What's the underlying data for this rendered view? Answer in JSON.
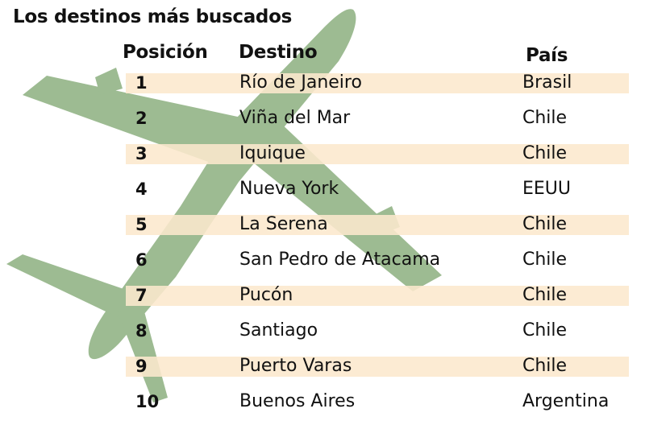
{
  "title": "Los destinos más buscados",
  "headers": {
    "position": "Posición",
    "destination": "Destino",
    "country": "País"
  },
  "colors": {
    "band": "#fce8cd",
    "plane": "#9dbb92",
    "text": "#111111"
  },
  "icons": {
    "background": "airplane-icon"
  },
  "rows": [
    {
      "position": "1",
      "destination": "Río de Janeiro",
      "country": "Brasil"
    },
    {
      "position": "2",
      "destination": "Viña del Mar",
      "country": "Chile"
    },
    {
      "position": "3",
      "destination": "Iquique",
      "country": "Chile"
    },
    {
      "position": "4",
      "destination": "Nueva York",
      "country": "EEUU"
    },
    {
      "position": "5",
      "destination": "La Serena",
      "country": "Chile"
    },
    {
      "position": "6",
      "destination": "San Pedro de Atacama",
      "country": "Chile"
    },
    {
      "position": "7",
      "destination": "Pucón",
      "country": "Chile"
    },
    {
      "position": "8",
      "destination": "Santiago",
      "country": "Chile"
    },
    {
      "position": "9",
      "destination": "Puerto Varas",
      "country": "Chile"
    },
    {
      "position": "10",
      "destination": "Buenos Aires",
      "country": "Argentina"
    }
  ]
}
